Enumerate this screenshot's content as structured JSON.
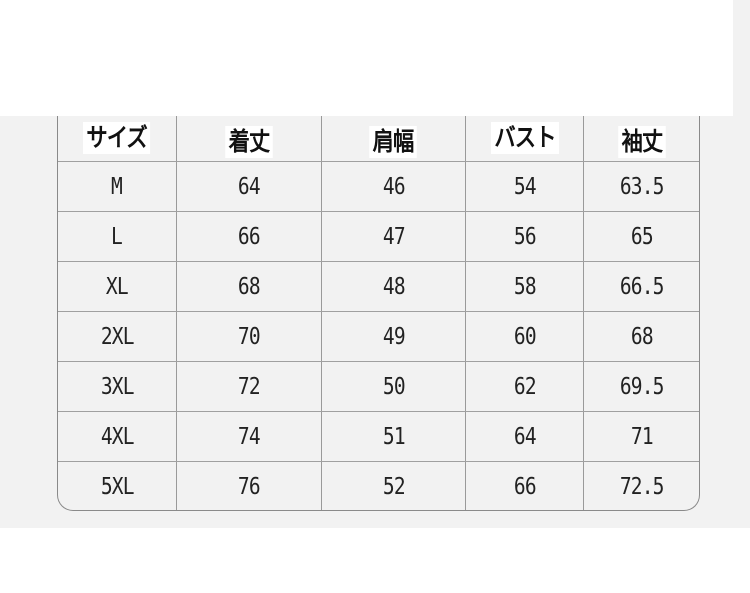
{
  "size_chart": {
    "headers": [
      "サイズ",
      "着丈",
      "肩幅",
      "バスト",
      "袖丈"
    ],
    "rows": [
      [
        "M",
        "64",
        "46",
        "54",
        "63.5"
      ],
      [
        "L",
        "66",
        "47",
        "56",
        "65"
      ],
      [
        "XL",
        "68",
        "48",
        "58",
        "66.5"
      ],
      [
        "2XL",
        "70",
        "49",
        "60",
        "68"
      ],
      [
        "3XL",
        "72",
        "50",
        "62",
        "69.5"
      ],
      [
        "4XL",
        "74",
        "51",
        "64",
        "71"
      ],
      [
        "5XL",
        "76",
        "52",
        "66",
        "72.5"
      ]
    ]
  },
  "colors": {
    "background": "#f2f2f2",
    "border": "#8a8a8a",
    "text": "#222222"
  }
}
